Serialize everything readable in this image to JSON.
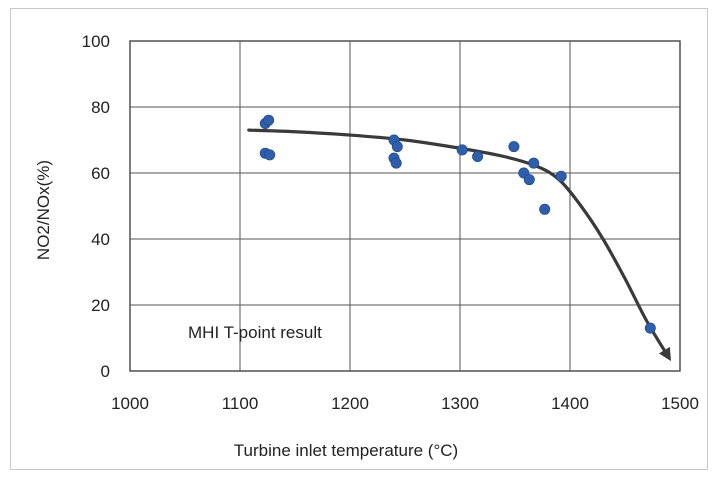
{
  "chart_data": {
    "type": "scatter",
    "xlabel": "Turbine inlet temperature (°C)",
    "ylabel": "NO2/NOx(%)",
    "xlim": [
      1000,
      1500
    ],
    "ylim": [
      0,
      100
    ],
    "xticks": [
      "1000",
      "1100",
      "1200",
      "1300",
      "1400",
      "1500"
    ],
    "yticks": [
      "0",
      "20",
      "40",
      "60",
      "80",
      "100"
    ],
    "grid": true,
    "annotation": "MHI T-point result",
    "point_color": "#2f5faa",
    "curve_color": "#3a3a3a",
    "points": [
      {
        "x": 1123,
        "y": 75
      },
      {
        "x": 1126,
        "y": 76
      },
      {
        "x": 1123,
        "y": 66
      },
      {
        "x": 1127,
        "y": 65.5
      },
      {
        "x": 1240,
        "y": 70
      },
      {
        "x": 1243,
        "y": 68
      },
      {
        "x": 1240,
        "y": 64.5
      },
      {
        "x": 1242,
        "y": 63
      },
      {
        "x": 1302,
        "y": 67
      },
      {
        "x": 1316,
        "y": 65
      },
      {
        "x": 1349,
        "y": 68
      },
      {
        "x": 1358,
        "y": 60
      },
      {
        "x": 1363,
        "y": 58
      },
      {
        "x": 1367,
        "y": 63
      },
      {
        "x": 1377,
        "y": 49
      },
      {
        "x": 1392,
        "y": 59
      },
      {
        "x": 1473,
        "y": 13
      }
    ],
    "trend": {
      "x": [
        1108,
        1150,
        1200,
        1250,
        1300,
        1340,
        1370,
        1390,
        1410,
        1430,
        1450,
        1470,
        1490
      ],
      "y": [
        73,
        72.5,
        71.5,
        70,
        67.5,
        65,
        62,
        58,
        50,
        40,
        28,
        15,
        4
      ]
    }
  }
}
